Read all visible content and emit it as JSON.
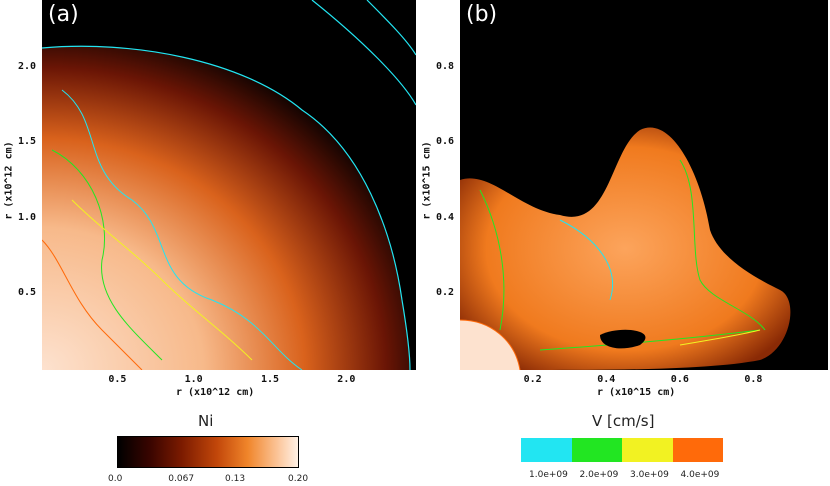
{
  "chart_data": [
    {
      "type": "heatmap",
      "panel_label": "(a)",
      "xlabel": "r (x10^12 cm)",
      "ylabel": "r (x10^12 cm)",
      "x_ticks": [
        "0.5",
        "1.0",
        "1.5",
        "2.0"
      ],
      "y_ticks": [
        "0.5",
        "1.0",
        "1.5",
        "2.0"
      ],
      "x_tick_values": [
        0.5,
        1.0,
        1.5,
        2.0
      ],
      "y_tick_values": [
        0.5,
        1.0,
        1.5,
        2.0
      ],
      "xlim": [
        0.0,
        2.45
      ],
      "ylim": [
        0.0,
        2.45
      ],
      "colorbar": {
        "title": "Ni",
        "ticks": [
          "0.0",
          "0.067",
          "0.13",
          "0.20"
        ],
        "tick_values": [
          0.0,
          0.067,
          0.13,
          0.2
        ],
        "range": [
          0.0,
          0.2
        ]
      }
    },
    {
      "type": "heatmap",
      "panel_label": "(b)",
      "xlabel": "r (x10^15 cm)",
      "ylabel": "r (x10^15 cm)",
      "x_ticks": [
        "0.2",
        "0.4",
        "0.6",
        "0.8"
      ],
      "y_ticks": [
        "0.2",
        "0.4",
        "0.6",
        "0.8"
      ],
      "x_tick_values": [
        0.2,
        0.4,
        0.6,
        0.8
      ],
      "y_tick_values": [
        0.2,
        0.4,
        0.6,
        0.8
      ],
      "xlim": [
        0.0,
        1.0
      ],
      "ylim": [
        0.0,
        0.98
      ],
      "contour_legend": {
        "title": "V [cm/s]",
        "levels": [
          {
            "label": "1.0e+09",
            "value": 1000000000.0,
            "color": "#22e5f2"
          },
          {
            "label": "2.0e+09",
            "value": 2000000000.0,
            "color": "#22e622"
          },
          {
            "label": "3.0e+09",
            "value": 3000000000.0,
            "color": "#f2f222"
          },
          {
            "label": "4.0e+09",
            "value": 4000000000.0,
            "color": "#ff6a0a"
          }
        ]
      }
    }
  ]
}
